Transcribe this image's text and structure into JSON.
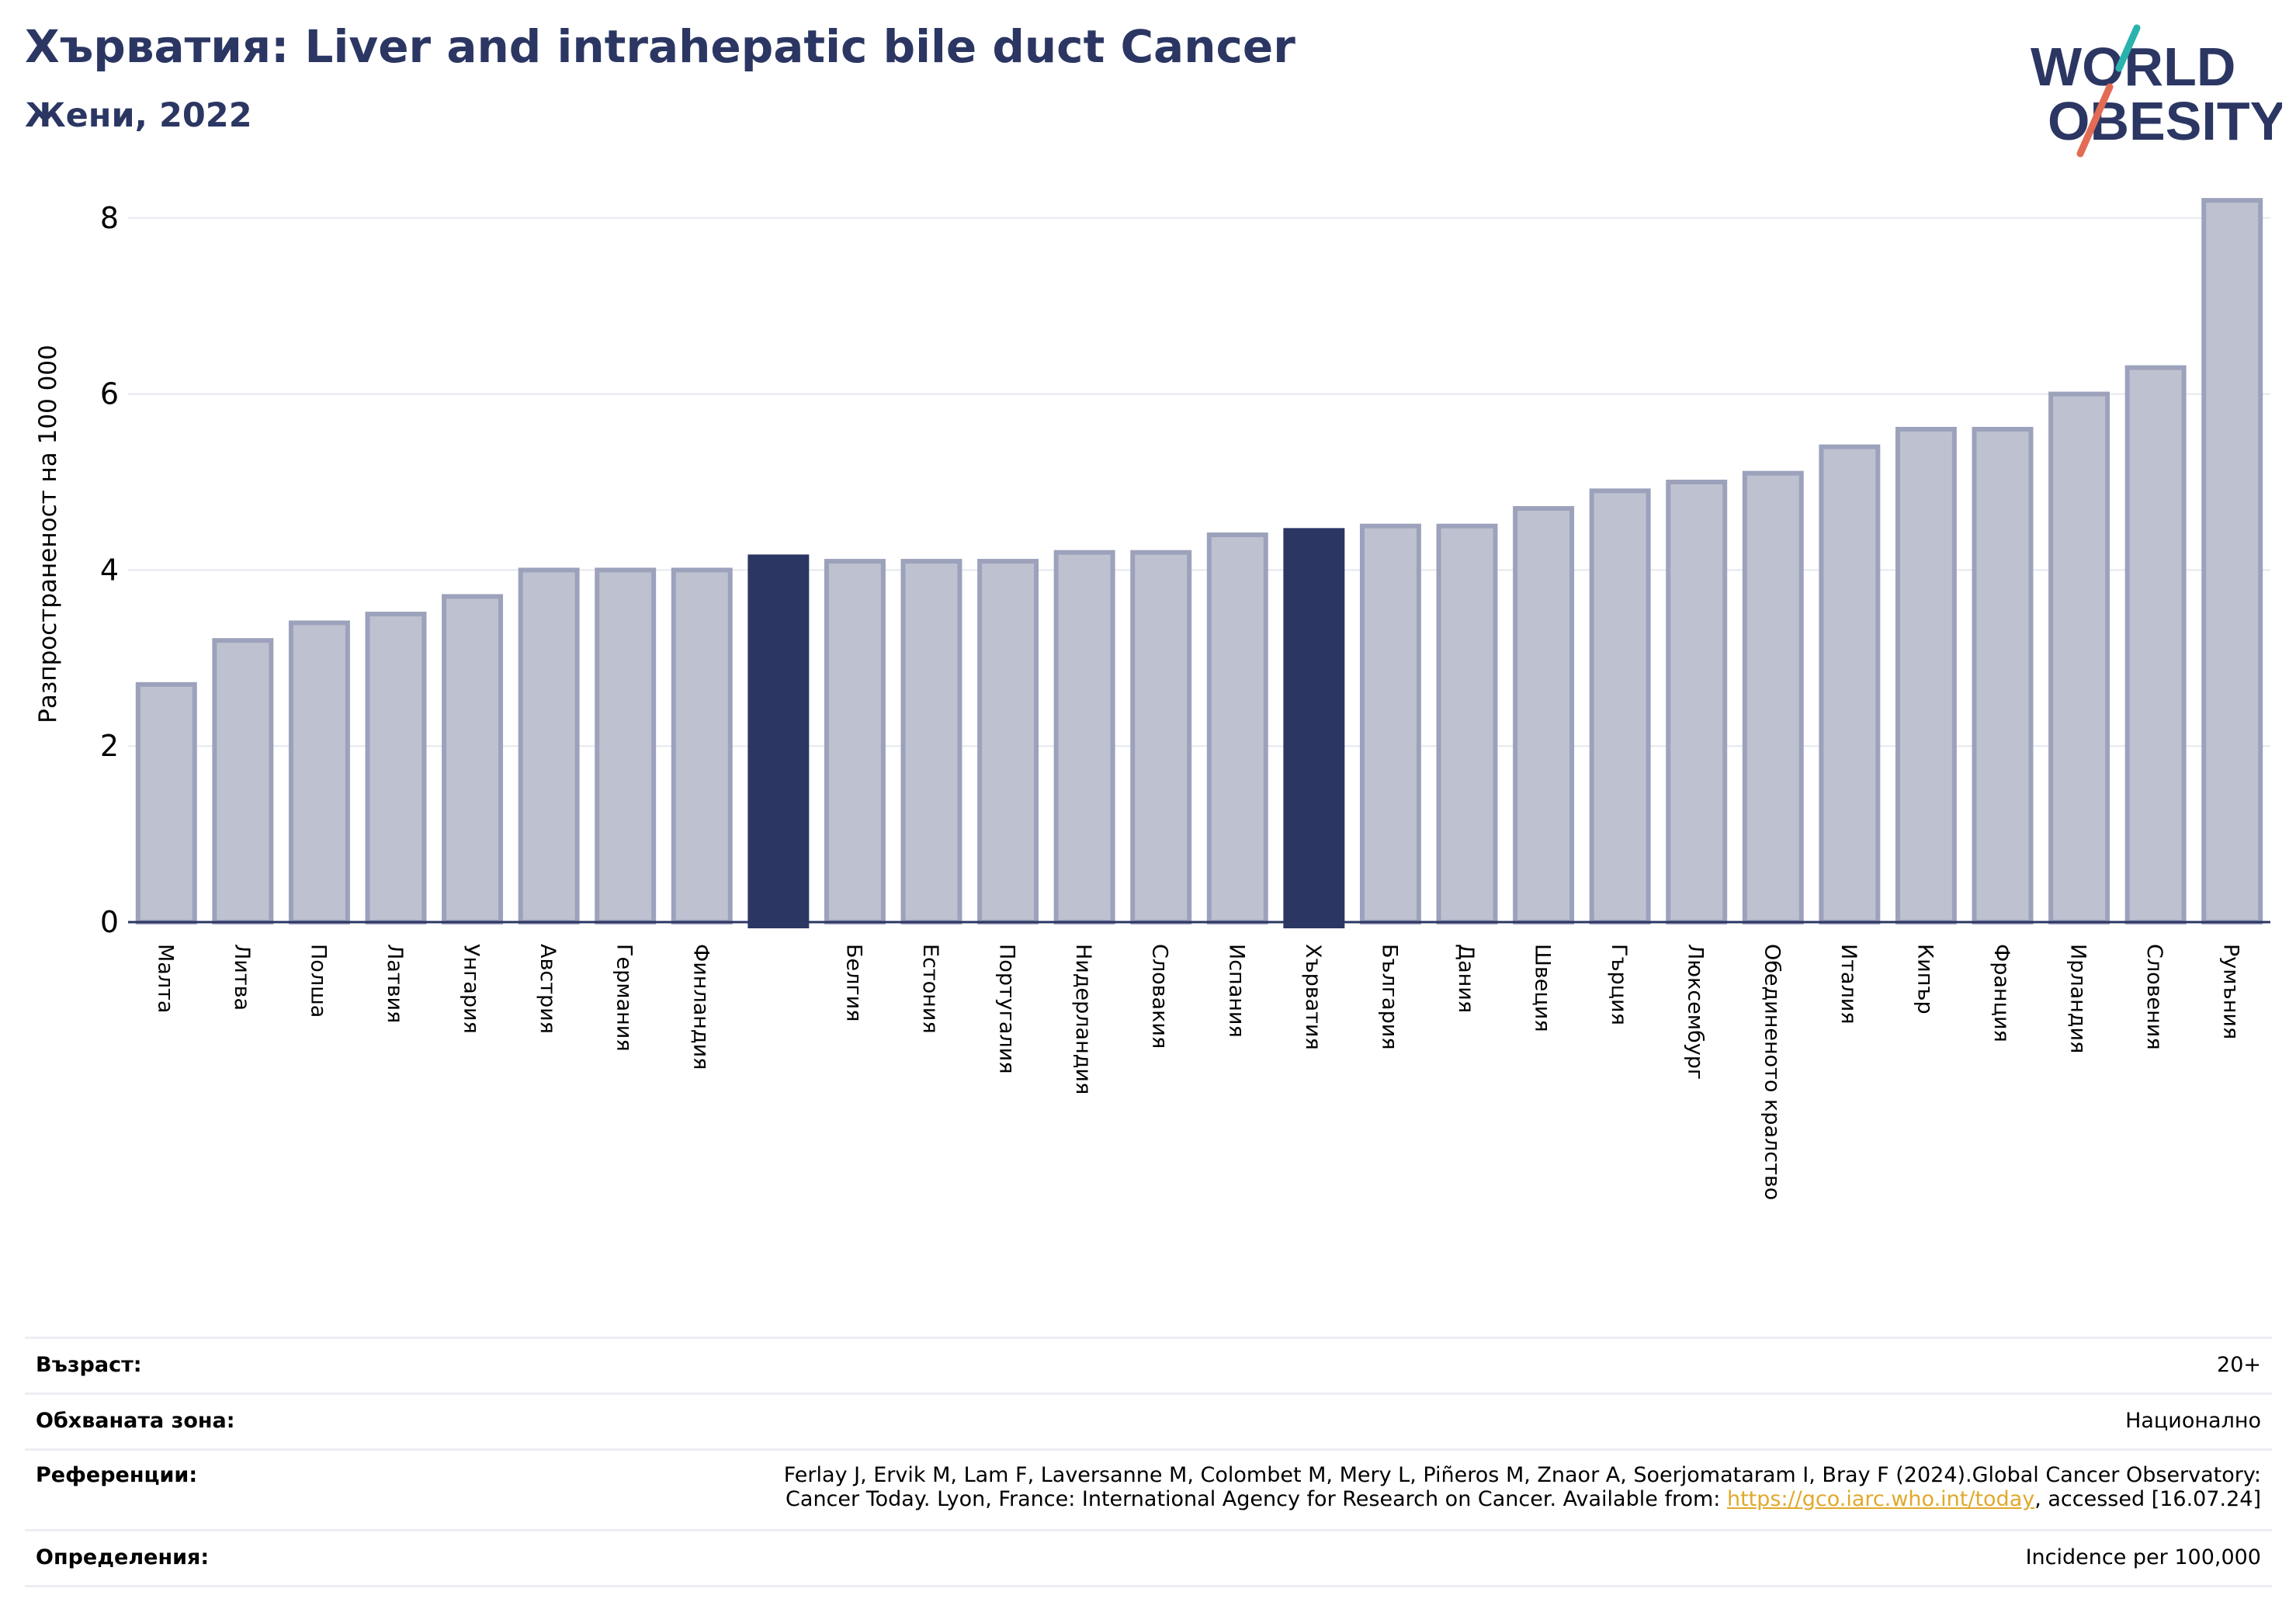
{
  "header": {
    "title": "Хърватия: Liver and intrahepatic bile duct Cancer",
    "subtitle": "Жени, 2022"
  },
  "logo": {
    "line1": "WORLD",
    "line2": "OBESITY"
  },
  "colors": {
    "brand": "#2b3663",
    "bar_default": "#bec1cf",
    "bar_edge": "#9ca2bb",
    "bar_highlight": "#2b3663",
    "logo_teal": "#2ab3ad",
    "logo_coral": "#e26b55",
    "link": "#e1a82a"
  },
  "chart_data": {
    "type": "bar",
    "title": "Хърватия: Liver and intrahepatic bile duct Cancer",
    "subtitle": "Жени, 2022",
    "xlabel": "",
    "ylabel": "Разпространеност  на 100 000",
    "ylim": [
      0,
      8.2
    ],
    "yticks": [
      0,
      2,
      4,
      6,
      8
    ],
    "grid": true,
    "categories": [
      "Малта",
      "Литва",
      "Полша",
      "Латвия",
      "Унгария",
      "Австрия",
      "Германия",
      "Финландия",
      "",
      "Белгия",
      "Естония",
      "Португалия",
      "Нидерландия",
      "Словакия",
      "Испания",
      "Хърватия",
      "България",
      "Дания",
      "Швеция",
      "Гърция",
      "Люксембург",
      "Обединеното кралство",
      "Италия",
      "Кипър",
      "Франция",
      "Ирландия",
      "Словения",
      "Румъния"
    ],
    "values": [
      2.7,
      3.2,
      3.4,
      3.5,
      3.7,
      4.0,
      4.0,
      4.0,
      4.15,
      4.1,
      4.1,
      4.1,
      4.2,
      4.2,
      4.4,
      4.45,
      4.5,
      4.5,
      4.7,
      4.9,
      5.0,
      5.1,
      5.4,
      5.6,
      5.6,
      6.0,
      6.3,
      8.2
    ],
    "highlighted": [
      8,
      15
    ]
  },
  "info": {
    "age_label": "Възраст:",
    "age_value": "20+",
    "area_label": "Обхваната зона:",
    "area_value": "Национално",
    "refs_label": "Референции:",
    "refs_line1": "Ferlay J, Ervik M, Lam F, Laversanne M, Colombet M, Mery L, Piñeros M, Znaor A, Soerjomataram I, Bray F (2024).Global Cancer Observatory:",
    "refs_line2_pre": "Cancer Today. Lyon, France: International Agency for Research on Cancer. Available from: ",
    "refs_link": "https://gco.iarc.who.int/today",
    "refs_line2_post": ", accessed [16.07.24]",
    "defs_label": "Определения:",
    "defs_value": "Incidence per 100,000"
  }
}
